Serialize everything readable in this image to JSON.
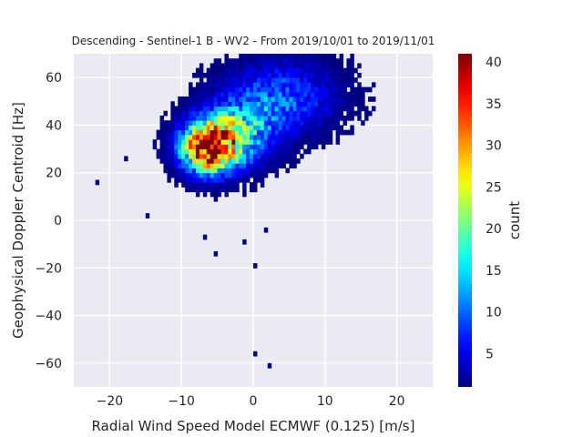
{
  "chart_data": {
    "type": "heatmap",
    "title": "Descending - Sentinel-1 B - WV2 - From 2019/10/01 to 2019/11/01",
    "xlabel": "Radial Wind Speed Model ECMWF (0.125) [m/s]",
    "ylabel": "Geophysical Doppler Centroid [Hz]",
    "xlim": [
      -25,
      25
    ],
    "ylim": [
      -70,
      70
    ],
    "x_ticks": [
      -20,
      -10,
      0,
      10,
      20
    ],
    "y_ticks": [
      -60,
      -40,
      -20,
      0,
      20,
      40,
      60
    ],
    "x_tick_labels": [
      "−20",
      "−10",
      "0",
      "10",
      "20"
    ],
    "y_tick_labels": [
      "−60",
      "−40",
      "−20",
      "0",
      "20",
      "40",
      "60"
    ],
    "grid": true,
    "colormap": "jet",
    "colorbar": {
      "label": "count",
      "min": 1,
      "max": 41,
      "ticks": [
        5,
        10,
        15,
        20,
        25,
        30,
        35,
        40
      ],
      "tick_labels": [
        "5",
        "10",
        "15",
        "20",
        "25",
        "30",
        "35",
        "40"
      ]
    },
    "bin_size": [
      0.5,
      2
    ],
    "clusters": [
      {
        "x": -6,
        "y": 31,
        "sx": 2.6,
        "sy": 7,
        "peak": 41
      },
      {
        "x": -2,
        "y": 38,
        "sx": 3.5,
        "sy": 9,
        "peak": 14
      },
      {
        "x": 4,
        "y": 52,
        "sx": 5,
        "sy": 10,
        "peak": 9
      }
    ],
    "outliers": [
      {
        "x": -22,
        "y": 15,
        "count": 2
      },
      {
        "x": -18,
        "y": 25,
        "count": 1
      },
      {
        "x": -15,
        "y": 1,
        "count": 1
      },
      {
        "x": -5.5,
        "y": -15,
        "count": 1
      },
      {
        "x": -7,
        "y": -8,
        "count": 1
      },
      {
        "x": -1.5,
        "y": -10,
        "count": 1
      },
      {
        "x": 1.5,
        "y": -5,
        "count": 1
      },
      {
        "x": 0,
        "y": -20,
        "count": 1
      },
      {
        "x": 0,
        "y": -57,
        "count": 1
      },
      {
        "x": 2,
        "y": -62,
        "count": 1
      }
    ],
    "colors": {
      "plot_background": "#eaeaf2",
      "grid": "#ffffff",
      "text": "#262626"
    }
  }
}
